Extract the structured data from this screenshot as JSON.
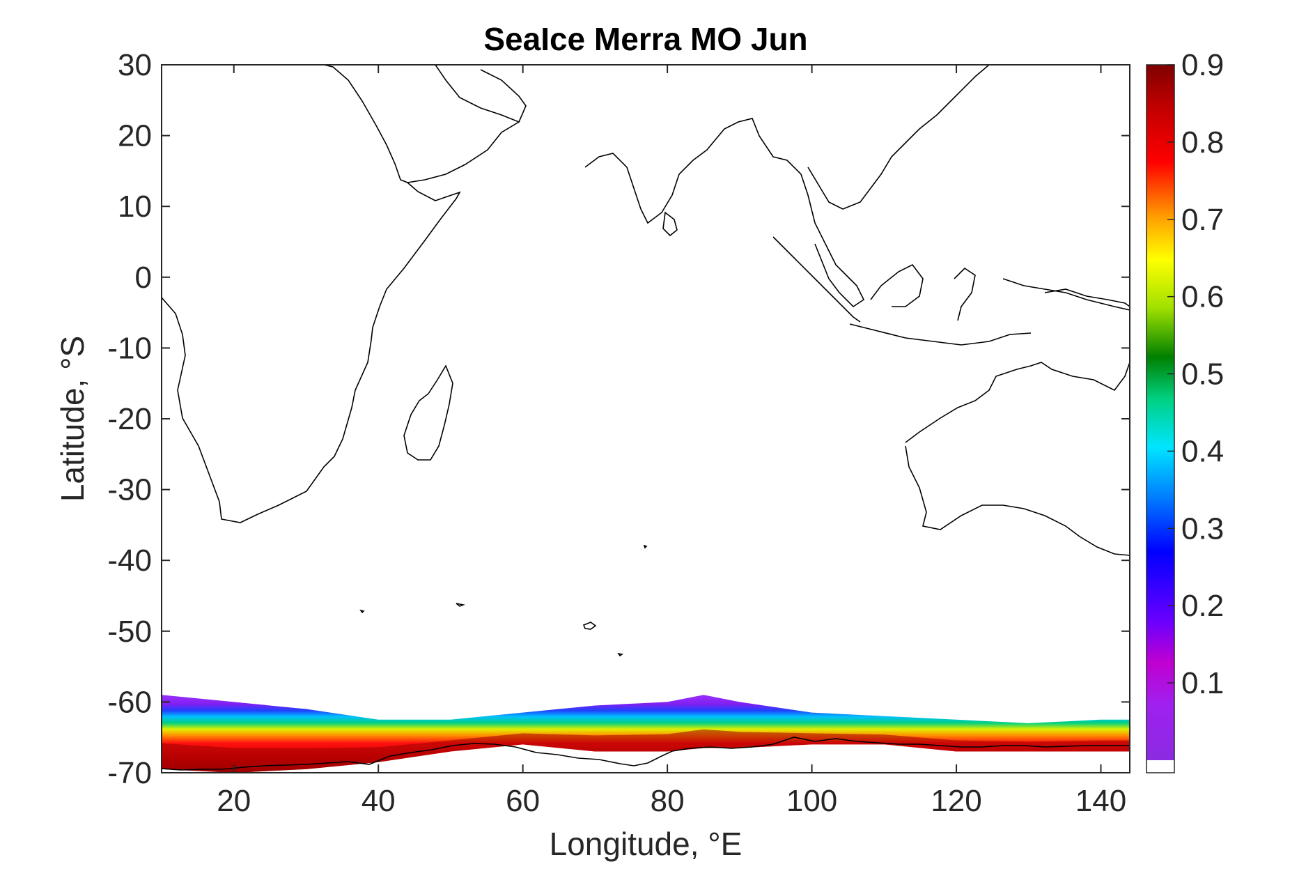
{
  "title": "SeaIce Merra MO Jun",
  "xlabel": "Longitude, °E",
  "ylabel": "Latitude, °S",
  "chart_data": {
    "type": "heatmap",
    "title": "SeaIce Merra MO Jun",
    "xlabel": "Longitude, °E",
    "ylabel": "Latitude, °S",
    "xlim": [
      10,
      144
    ],
    "ylim": [
      -70,
      30
    ],
    "xticks": [
      20,
      40,
      60,
      80,
      100,
      120,
      140
    ],
    "yticks": [
      30,
      20,
      10,
      0,
      -10,
      -20,
      -30,
      -40,
      -50,
      -60,
      -70
    ],
    "colorbar": {
      "range": [
        0,
        0.9
      ],
      "ticks": [
        0.1,
        0.2,
        0.3,
        0.4,
        0.5,
        0.6,
        0.7,
        0.8,
        0.9
      ],
      "colormap": "jet-like (purple-blue-cyan-green-yellow-orange-red-darkred), white for zero"
    },
    "sea_ice_edge": {
      "description": "Sea ice concentration band along the Antarctic coast",
      "x": [
        10,
        20,
        30,
        40,
        50,
        60,
        70,
        80,
        85,
        90,
        100,
        110,
        120,
        130,
        140,
        144
      ],
      "outer_edge_lat": [
        -59,
        -60,
        -61,
        -62.5,
        -62.5,
        -61.5,
        -60.5,
        -60,
        -59,
        -60,
        -61.5,
        -62,
        -62.5,
        -63,
        -62.5,
        -62.5
      ],
      "coast_lat": [
        -69.5,
        -70,
        -69.5,
        -68.5,
        -67,
        -66,
        -67,
        -67,
        -66.5,
        -66.5,
        -66,
        -66,
        -67,
        -67,
        -67,
        -67
      ]
    }
  }
}
